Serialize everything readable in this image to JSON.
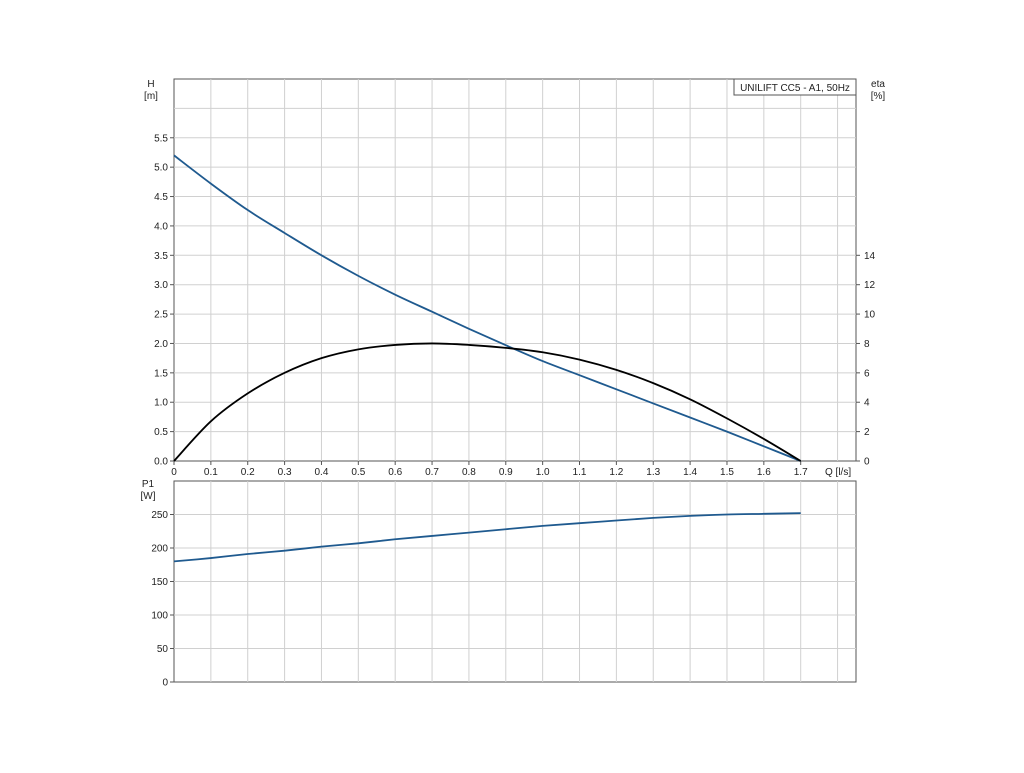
{
  "chart_data": [
    {
      "type": "line",
      "title": "UNILIFT CC5 - A1, 50Hz",
      "xlabel": "Q [l/s]",
      "ylabel": {
        "name": "H",
        "unit": "[m]"
      },
      "y2label": {
        "name": "eta",
        "unit": "[%]"
      },
      "xlim": [
        0,
        1.85
      ],
      "ylim": [
        0,
        6.5
      ],
      "y2lim": [
        0,
        26
      ],
      "x_ticks": [
        "0",
        "0.1",
        "0.2",
        "0.3",
        "0.4",
        "0.5",
        "0.6",
        "0.7",
        "0.8",
        "0.9",
        "1.0",
        "1.1",
        "1.2",
        "1.3",
        "1.4",
        "1.5",
        "1.6",
        "1.7"
      ],
      "y_ticks": [
        "0.0",
        "0.5",
        "1.0",
        "1.5",
        "2.0",
        "2.5",
        "3.0",
        "3.5",
        "4.0",
        "4.5",
        "5.0",
        "5.5"
      ],
      "y2_ticks": [
        "0",
        "2",
        "4",
        "6",
        "8",
        "10",
        "12",
        "14"
      ],
      "grid": true,
      "series": [
        {
          "color": "#1f5a8f",
          "axis": "left",
          "x": [
            0,
            0.1,
            0.2,
            0.3,
            0.4,
            0.5,
            0.6,
            0.7,
            0.8,
            0.9,
            1.0,
            1.1,
            1.2,
            1.3,
            1.4,
            1.5,
            1.6,
            1.7
          ],
          "y": [
            5.2,
            4.72,
            4.27,
            3.88,
            3.5,
            3.15,
            2.83,
            2.54,
            2.25,
            1.97,
            1.7,
            1.46,
            1.22,
            0.98,
            0.74,
            0.5,
            0.25,
            0.0
          ]
        },
        {
          "color": "#000000",
          "axis": "right",
          "x": [
            0,
            0.1,
            0.2,
            0.3,
            0.4,
            0.5,
            0.6,
            0.7,
            0.8,
            0.9,
            1.0,
            1.1,
            1.2,
            1.3,
            1.4,
            1.5,
            1.6,
            1.7
          ],
          "y": [
            0,
            2.7,
            4.6,
            6.0,
            7.0,
            7.6,
            7.9,
            8.0,
            7.9,
            7.7,
            7.4,
            6.9,
            6.2,
            5.3,
            4.2,
            2.9,
            1.5,
            0
          ]
        }
      ]
    },
    {
      "type": "line",
      "xlabel": "",
      "ylabel": {
        "name": "P1",
        "unit": "[W]"
      },
      "xlim": [
        0,
        1.85
      ],
      "ylim": [
        0,
        300
      ],
      "y_ticks": [
        "0",
        "50",
        "100",
        "150",
        "200",
        "250"
      ],
      "grid": true,
      "series": [
        {
          "color": "#1f5a8f",
          "axis": "left",
          "x": [
            0,
            0.1,
            0.2,
            0.3,
            0.4,
            0.5,
            0.6,
            0.7,
            0.8,
            0.9,
            1.0,
            1.1,
            1.2,
            1.3,
            1.4,
            1.5,
            1.6,
            1.7
          ],
          "y": [
            180,
            185,
            191,
            196,
            202,
            207,
            213,
            218,
            223,
            228,
            233,
            237,
            241,
            245,
            248,
            250,
            251,
            252
          ]
        }
      ]
    }
  ]
}
